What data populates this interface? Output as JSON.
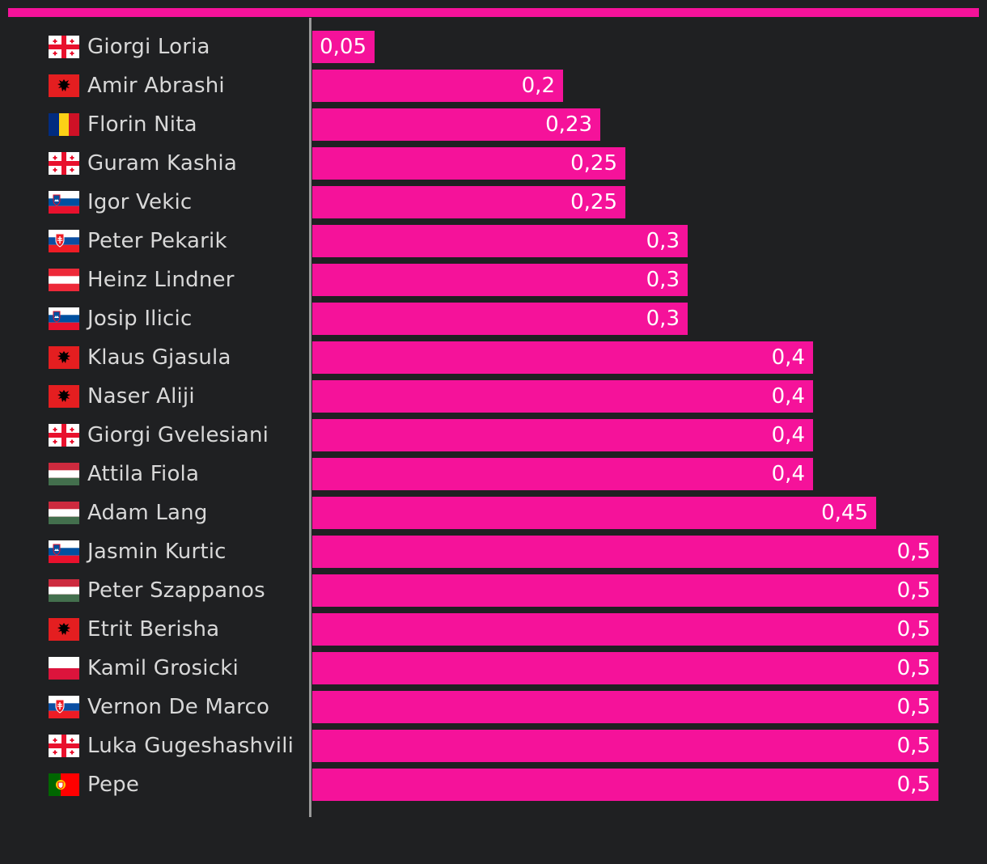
{
  "colors": {
    "background": "#1f2022",
    "bar": "#f5129a",
    "accent": "#f5129a",
    "axis": "#9a9a9a",
    "label": "#d8d8d8",
    "value": "#ffffff"
  },
  "chart_data": {
    "type": "bar",
    "orientation": "horizontal",
    "title": "",
    "xlabel": "",
    "ylabel": "",
    "xlim": [
      0,
      0.5
    ],
    "grid": false,
    "legend": "none",
    "decimal_separator": ",",
    "categories": [
      "Giorgi Loria",
      "Amir Abrashi",
      "Florin Nita",
      "Guram Kashia",
      "Igor Vekic",
      "Peter Pekarik",
      "Heinz Lindner",
      "Josip Ilicic",
      "Klaus Gjasula",
      "Naser Aliji",
      "Giorgi Gvelesiani",
      "Attila Fiola",
      "Adam Lang",
      "Jasmin Kurtic",
      "Peter Szappanos",
      "Etrit Berisha",
      "Kamil Grosicki",
      "Vernon De Marco",
      "Luka Gugeshashvili",
      "Pepe"
    ],
    "values": [
      0.05,
      0.2,
      0.23,
      0.25,
      0.25,
      0.3,
      0.3,
      0.3,
      0.4,
      0.4,
      0.4,
      0.4,
      0.45,
      0.5,
      0.5,
      0.5,
      0.5,
      0.5,
      0.5,
      0.5
    ],
    "value_labels": [
      "0,05",
      "0,2",
      "0,23",
      "0,25",
      "0,25",
      "0,3",
      "0,3",
      "0,3",
      "0,4",
      "0,4",
      "0,4",
      "0,4",
      "0,45",
      "0,5",
      "0,5",
      "0,5",
      "0,5",
      "0,5",
      "0,5",
      "0,5"
    ],
    "flags": [
      "georgia-flag-icon",
      "albania-flag-icon",
      "romania-flag-icon",
      "georgia-flag-icon",
      "slovenia-flag-icon",
      "slovakia-flag-icon",
      "austria-flag-icon",
      "slovenia-flag-icon",
      "albania-flag-icon",
      "albania-flag-icon",
      "georgia-flag-icon",
      "hungary-flag-icon",
      "hungary-flag-icon",
      "slovenia-flag-icon",
      "hungary-flag-icon",
      "albania-flag-icon",
      "poland-flag-icon",
      "slovakia-flag-icon",
      "georgia-flag-icon",
      "portugal-flag-icon"
    ]
  }
}
